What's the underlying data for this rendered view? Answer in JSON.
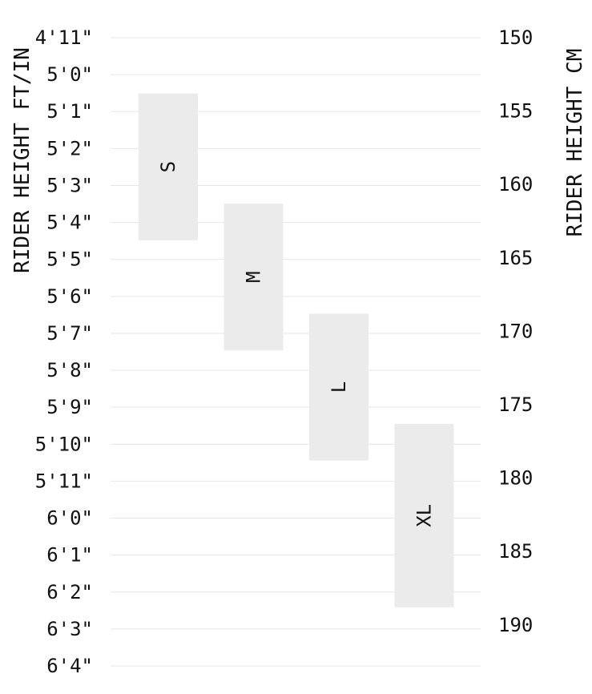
{
  "chart_data": {
    "type": "bar",
    "orientation": "floating-range",
    "left_axis": {
      "label": "RIDER HEIGHT FT/IN",
      "ticks": [
        "4'11\"",
        "5'0\"",
        "5'1\"",
        "5'2\"",
        "5'3\"",
        "5'4\"",
        "5'5\"",
        "5'6\"",
        "5'7\"",
        "5'8\"",
        "5'9\"",
        "5'10\"",
        "5'11\"",
        "6'0\"",
        "6'1\"",
        "6'2\"",
        "6'3\"",
        "6'4\""
      ]
    },
    "right_axis": {
      "label": "RIDER HEIGHT CM",
      "ticks": [
        150,
        155,
        160,
        165,
        170,
        175,
        180,
        185,
        190
      ],
      "ylim_cm": [
        150,
        193
      ]
    },
    "grid": true,
    "series": [
      {
        "name": "S",
        "min_cm": 153.8,
        "max_cm": 163.8
      },
      {
        "name": "M",
        "min_cm": 161.3,
        "max_cm": 171.3
      },
      {
        "name": "L",
        "min_cm": 168.8,
        "max_cm": 178.8
      },
      {
        "name": "XL",
        "min_cm": 176.3,
        "max_cm": 188.8
      }
    ],
    "colors": {
      "bar": "#ebebeb",
      "grid": "#e6e6e6",
      "text": "#111111"
    }
  }
}
